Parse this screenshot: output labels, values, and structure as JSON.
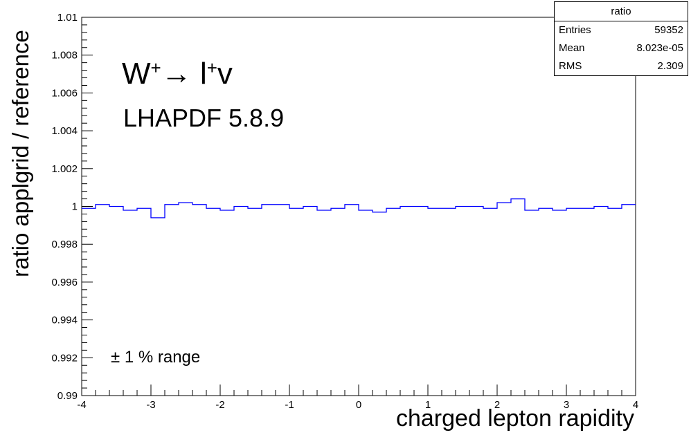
{
  "chart_data": {
    "type": "line",
    "title": "W⁺→ l⁺ν",
    "title_parts": {
      "w": "W",
      "plus1": "+",
      "arrow": "→ ",
      "l": "l",
      "plus2": "+",
      "nu": "v"
    },
    "subtitle": "LHAPDF 5.8.9",
    "annotation": "± 1 % range",
    "xlabel": "charged lepton rapidity",
    "ylabel": "ratio applgrid / reference",
    "xlim": [
      -4,
      4
    ],
    "ylim": [
      0.99,
      1.01
    ],
    "x_ticks": [
      -4,
      -3,
      -2,
      -1,
      0,
      1,
      2,
      3,
      4
    ],
    "y_ticks": [
      "0.99",
      "0.992",
      "0.994",
      "0.996",
      "0.998",
      "1",
      "1.002",
      "1.004",
      "1.006",
      "1.008",
      "1.01"
    ],
    "grid": false,
    "line_color": "#0000ff",
    "bin_edges": [
      -4.0,
      -3.8,
      -3.6,
      -3.4,
      -3.2,
      -3.0,
      -2.8,
      -2.6,
      -2.4,
      -2.2,
      -2.0,
      -1.8,
      -1.6,
      -1.4,
      -1.2,
      -1.0,
      -0.8,
      -0.6,
      -0.4,
      -0.2,
      0.0,
      0.2,
      0.4,
      0.6,
      0.8,
      1.0,
      1.2,
      1.4,
      1.6,
      1.8,
      2.0,
      2.2,
      2.4,
      2.6,
      2.8,
      3.0,
      3.2,
      3.4,
      3.6,
      3.8,
      4.0
    ],
    "series": [
      {
        "values": [
          0.9999,
          1.0001,
          1.0,
          0.9998,
          0.9999,
          0.9994,
          1.0001,
          1.0002,
          1.0001,
          0.9999,
          0.9998,
          1.0,
          0.9999,
          1.0001,
          1.0001,
          0.9999,
          1.0,
          0.9998,
          0.9999,
          1.0001,
          0.9998,
          0.9997,
          0.9999,
          1.0,
          1.0,
          0.9999,
          0.9999,
          1.0,
          1.0,
          0.9999,
          1.0002,
          1.0004,
          0.9998,
          0.9999,
          0.9998,
          0.9999,
          0.9999,
          1.0,
          0.9999,
          1.0001
        ]
      }
    ]
  },
  "stats": {
    "name": "ratio",
    "rows": [
      {
        "label": "Entries",
        "value": "59352"
      },
      {
        "label": "Mean",
        "value": "8.023e-05"
      },
      {
        "label": "RMS",
        "value": "2.309"
      }
    ]
  }
}
